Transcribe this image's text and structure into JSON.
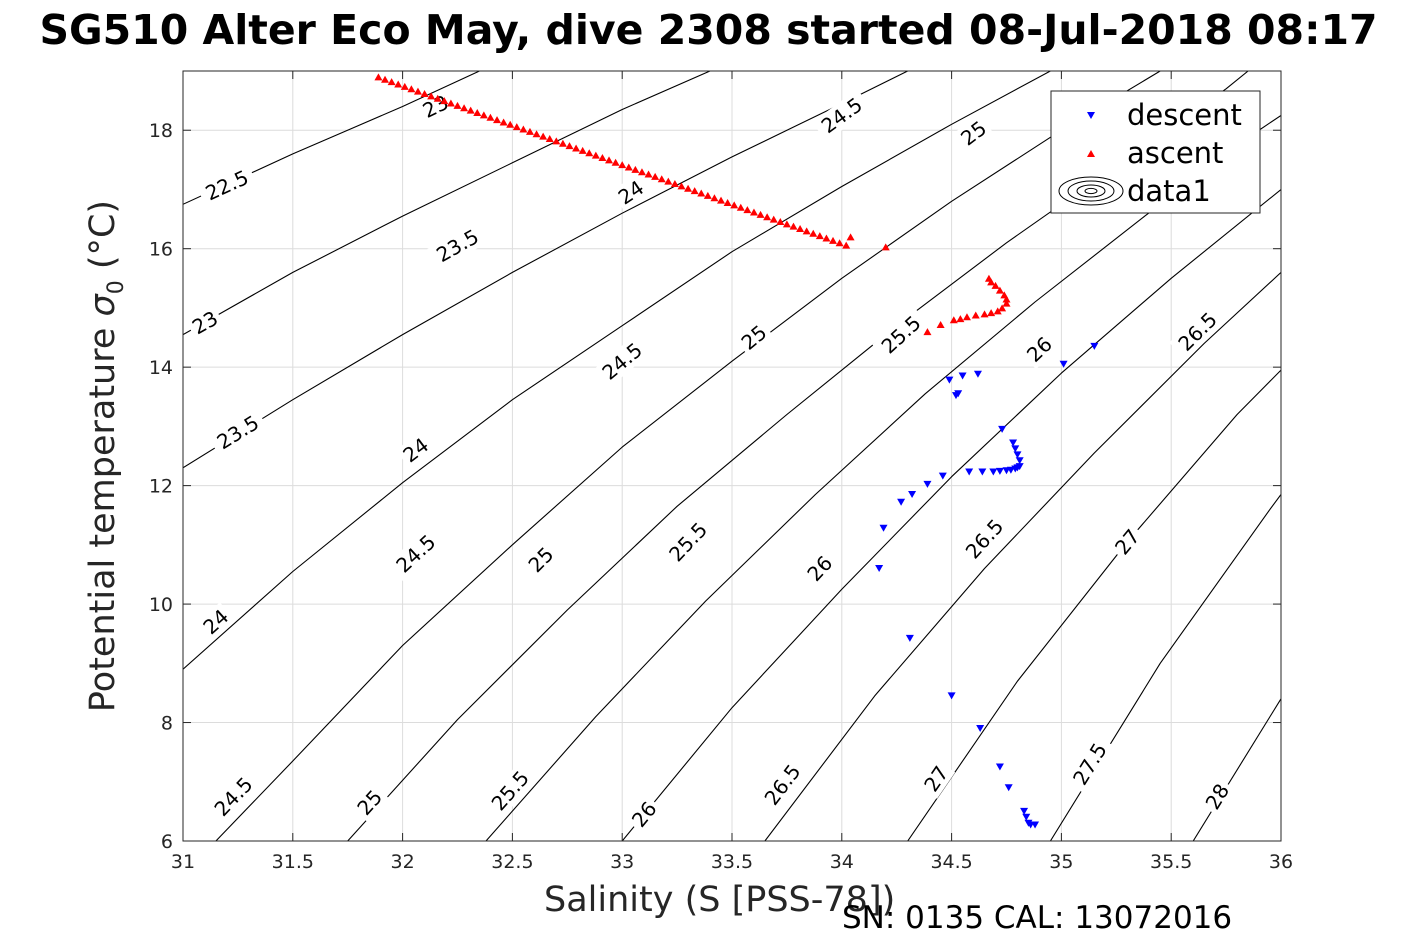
{
  "title": "SG510 Alter Eco May, dive 2308 started 08-Jul-2018 08:17",
  "note": "SN: 0135  CAL: 13072016",
  "chart_data": {
    "type": "scatter",
    "xlabel": "Salinity (S [PSS-78])",
    "ylabel_main": "Potential temperature ",
    "ylabel_sigma": "σ",
    "ylabel_sub": "0",
    "ylabel_unit": " (°C)",
    "xlim": [
      31,
      36
    ],
    "ylim": [
      6,
      19
    ],
    "xticks": [
      "31",
      "31.5",
      "32",
      "32.5",
      "33",
      "33.5",
      "34",
      "34.5",
      "35",
      "35.5",
      "36"
    ],
    "yticks": [
      "6",
      "8",
      "10",
      "12",
      "14",
      "16",
      "18"
    ],
    "grid": true,
    "legend_position": "top-right",
    "legend": [
      "descent",
      "ascent",
      "data1"
    ],
    "series": [
      {
        "name": "descent",
        "color": "#0000ff",
        "marker": "triangle-down",
        "x": [
          35.15,
          35.01,
          34.62,
          34.55,
          34.52,
          34.49,
          34.53,
          34.73,
          34.78,
          34.79,
          34.8,
          34.81,
          34.81,
          34.8,
          34.79,
          34.77,
          34.75,
          34.72,
          34.69,
          34.64,
          34.58,
          34.46,
          34.39,
          34.32,
          34.27,
          34.19,
          34.17,
          34.31,
          34.5,
          34.63,
          34.72,
          34.76,
          34.83,
          34.84,
          34.85,
          34.86,
          34.88
        ],
        "y": [
          14.35,
          14.05,
          13.88,
          13.85,
          13.52,
          13.78,
          13.55,
          12.95,
          12.72,
          12.62,
          12.52,
          12.42,
          12.32,
          12.3,
          12.28,
          12.26,
          12.25,
          12.24,
          12.23,
          12.23,
          12.23,
          12.16,
          12.02,
          11.85,
          11.72,
          11.28,
          10.6,
          9.42,
          8.45,
          7.9,
          7.25,
          6.9,
          6.5,
          6.4,
          6.3,
          6.27,
          6.27
        ]
      },
      {
        "name": "ascent",
        "color": "#ff0000",
        "marker": "triangle-up",
        "x": [
          31.89,
          31.92,
          31.95,
          31.98,
          32.01,
          32.04,
          32.07,
          32.1,
          32.13,
          32.16,
          32.19,
          32.22,
          32.25,
          32.28,
          32.31,
          32.34,
          32.37,
          32.4,
          32.43,
          32.46,
          32.49,
          32.52,
          32.55,
          32.58,
          32.61,
          32.64,
          32.67,
          32.7,
          32.73,
          32.76,
          32.79,
          32.82,
          32.85,
          32.88,
          32.91,
          32.94,
          32.97,
          33.0,
          33.03,
          33.06,
          33.09,
          33.12,
          33.15,
          33.18,
          33.21,
          33.24,
          33.27,
          33.3,
          33.33,
          33.36,
          33.39,
          33.42,
          33.45,
          33.48,
          33.51,
          33.54,
          33.57,
          33.6,
          33.63,
          33.66,
          33.69,
          33.72,
          33.75,
          33.78,
          33.81,
          33.84,
          33.87,
          33.9,
          33.93,
          33.96,
          33.99,
          34.02,
          34.04,
          34.2,
          34.39,
          34.45,
          34.51,
          34.54,
          34.57,
          34.61,
          34.65,
          34.68,
          34.71,
          34.73,
          34.75,
          34.75,
          34.74,
          34.72,
          34.7,
          34.68,
          34.67
        ],
        "y": [
          18.9,
          18.86,
          18.82,
          18.78,
          18.74,
          18.7,
          18.66,
          18.62,
          18.58,
          18.54,
          18.5,
          18.46,
          18.42,
          18.38,
          18.34,
          18.3,
          18.26,
          18.22,
          18.18,
          18.14,
          18.1,
          18.06,
          18.02,
          17.98,
          17.94,
          17.9,
          17.86,
          17.82,
          17.78,
          17.74,
          17.7,
          17.66,
          17.62,
          17.58,
          17.54,
          17.5,
          17.46,
          17.42,
          17.38,
          17.34,
          17.3,
          17.26,
          17.22,
          17.18,
          17.14,
          17.1,
          17.06,
          17.02,
          16.98,
          16.94,
          16.9,
          16.86,
          16.82,
          16.78,
          16.74,
          16.7,
          16.66,
          16.62,
          16.58,
          16.54,
          16.5,
          16.46,
          16.42,
          16.38,
          16.34,
          16.3,
          16.26,
          16.22,
          16.18,
          16.14,
          16.1,
          16.06,
          16.2,
          16.03,
          14.6,
          14.72,
          14.8,
          14.82,
          14.85,
          14.88,
          14.9,
          14.92,
          14.95,
          15.0,
          15.08,
          15.15,
          15.22,
          15.3,
          15.38,
          15.44,
          15.5
        ]
      }
    ],
    "isopycnals": [
      {
        "label": "22.5",
        "pts": [
          [
            31,
            16.75
          ],
          [
            31.5,
            17.6
          ],
          [
            32,
            18.4
          ],
          [
            32.35,
            19
          ]
        ],
        "labels_at": [
          [
            31.2,
            17.07
          ]
        ]
      },
      {
        "label": "23",
        "pts": [
          [
            31,
            14.55
          ],
          [
            31.5,
            15.6
          ],
          [
            32,
            16.55
          ],
          [
            32.5,
            17.45
          ],
          [
            33,
            18.35
          ],
          [
            33.4,
            19
          ]
        ],
        "labels_at": [
          [
            31.1,
            14.75
          ],
          [
            32.15,
            18.4
          ]
        ]
      },
      {
        "label": "23.5",
        "pts": [
          [
            31,
            12.3
          ],
          [
            31.5,
            13.45
          ],
          [
            32,
            14.55
          ],
          [
            32.5,
            15.6
          ],
          [
            33,
            16.6
          ],
          [
            33.5,
            17.55
          ],
          [
            34,
            18.45
          ],
          [
            34.3,
            19
          ]
        ],
        "labels_at": [
          [
            31.25,
            12.9
          ],
          [
            32.25,
            16.05
          ]
        ]
      },
      {
        "label": "24",
        "pts": [
          [
            31,
            8.9
          ],
          [
            31.5,
            10.55
          ],
          [
            32,
            12.05
          ],
          [
            32.5,
            13.45
          ],
          [
            33,
            14.7
          ],
          [
            33.5,
            15.95
          ],
          [
            34,
            17.05
          ],
          [
            34.5,
            18.1
          ],
          [
            34.95,
            19
          ]
        ],
        "labels_at": [
          [
            31.15,
            9.7
          ],
          [
            32.06,
            12.6
          ],
          [
            33.04,
            16.95
          ]
        ]
      },
      {
        "label": "24.5",
        "pts": [
          [
            31.15,
            6
          ],
          [
            31.5,
            7.35
          ],
          [
            32,
            9.3
          ],
          [
            32.5,
            11
          ],
          [
            33,
            12.65
          ],
          [
            33.5,
            14.1
          ],
          [
            34,
            15.5
          ],
          [
            34.5,
            16.8
          ],
          [
            35,
            18
          ],
          [
            35.45,
            19
          ]
        ],
        "labels_at": [
          [
            31.23,
            6.75
          ],
          [
            32.06,
            10.85
          ],
          [
            33.0,
            14.1
          ],
          [
            34.0,
            18.25
          ]
        ]
      },
      {
        "label": "25",
        "pts": [
          [
            31.75,
            6
          ],
          [
            32.25,
            8.05
          ],
          [
            32.75,
            9.9
          ],
          [
            33.25,
            11.65
          ],
          [
            33.75,
            13.2
          ],
          [
            34.25,
            14.7
          ],
          [
            34.75,
            16.1
          ],
          [
            35.25,
            17.4
          ],
          [
            35.75,
            18.7
          ],
          [
            35.85,
            19
          ]
        ],
        "labels_at": [
          [
            31.85,
            6.65
          ],
          [
            32.63,
            10.75
          ],
          [
            33.6,
            14.5
          ],
          [
            34.6,
            17.95
          ]
        ]
      },
      {
        "label": "25.5",
        "pts": [
          [
            32.38,
            6
          ],
          [
            32.88,
            8.1
          ],
          [
            33.38,
            10.05
          ],
          [
            33.88,
            11.85
          ],
          [
            34.38,
            13.55
          ],
          [
            34.88,
            15.1
          ],
          [
            35.38,
            16.55
          ],
          [
            35.88,
            17.95
          ],
          [
            36,
            18.25
          ]
        ],
        "labels_at": [
          [
            32.49,
            6.85
          ],
          [
            33.3,
            11.05
          ],
          [
            34.27,
            14.55
          ]
        ]
      },
      {
        "label": "26",
        "pts": [
          [
            33,
            6
          ],
          [
            33.5,
            8.25
          ],
          [
            34,
            10.25
          ],
          [
            34.5,
            12.15
          ],
          [
            35,
            13.9
          ],
          [
            35.5,
            15.5
          ],
          [
            36,
            17
          ]
        ],
        "labels_at": [
          [
            33.1,
            6.45
          ],
          [
            33.9,
            10.6
          ],
          [
            34.9,
            14.3
          ]
        ]
      },
      {
        "label": "26.5",
        "pts": [
          [
            33.65,
            6
          ],
          [
            34.15,
            8.45
          ],
          [
            34.65,
            10.6
          ],
          [
            35.15,
            12.55
          ],
          [
            35.65,
            14.4
          ],
          [
            36,
            15.6
          ]
        ],
        "labels_at": [
          [
            33.73,
            6.95
          ],
          [
            34.65,
            11.1
          ],
          [
            35.62,
            14.6
          ]
        ]
      },
      {
        "label": "27",
        "pts": [
          [
            34.3,
            6
          ],
          [
            34.8,
            8.7
          ],
          [
            35.3,
            11.05
          ],
          [
            35.8,
            13.2
          ],
          [
            36,
            13.95
          ]
        ],
        "labels_at": [
          [
            34.43,
            7.05
          ],
          [
            35.3,
            11.05
          ]
        ]
      },
      {
        "label": "27.5",
        "pts": [
          [
            34.95,
            6
          ],
          [
            35.45,
            9.0
          ],
          [
            35.95,
            11.6
          ],
          [
            36,
            11.85
          ]
        ],
        "labels_at": [
          [
            35.13,
            7.3
          ]
        ]
      },
      {
        "label": "28",
        "pts": [
          [
            35.6,
            6
          ],
          [
            36,
            8.4
          ]
        ],
        "labels_at": [
          [
            35.71,
            6.75
          ]
        ]
      }
    ]
  }
}
